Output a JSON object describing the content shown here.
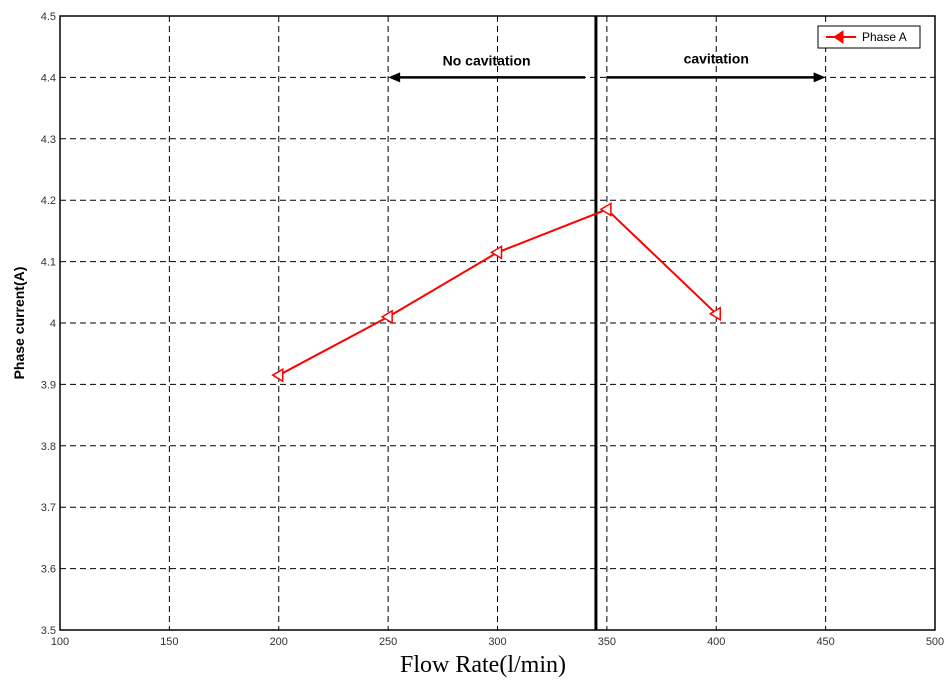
{
  "chart_data": {
    "type": "line",
    "title": "",
    "xlabel": "Flow Rate(l/min)",
    "ylabel": "Phase current(A)",
    "xlim": [
      100,
      500
    ],
    "ylim": [
      3.5,
      4.5
    ],
    "xticks": [
      "100",
      "150",
      "200",
      "250",
      "300",
      "350",
      "400",
      "450",
      "500"
    ],
    "yticks": [
      "3.5",
      "3.6",
      "3.7",
      "3.8",
      "3.9",
      "4",
      "4.1",
      "4.2",
      "4.3",
      "4.4",
      "4.5"
    ],
    "grid": true,
    "legend_position": "top-right",
    "series": [
      {
        "name": "Phase A",
        "color": "#ff0000",
        "marker": "triangle-left",
        "x": [
          200,
          250,
          300,
          350,
          400
        ],
        "y": [
          3.915,
          4.01,
          4.115,
          4.185,
          4.015
        ]
      }
    ],
    "annotations": {
      "divider_x": 345,
      "no_cavitation": {
        "text": "No cavitation",
        "x_from": 340,
        "x_to": 250,
        "y": 4.4
      },
      "cavitation": {
        "text": "cavitation",
        "x_from": 350,
        "x_to": 450,
        "y": 4.4
      }
    }
  }
}
